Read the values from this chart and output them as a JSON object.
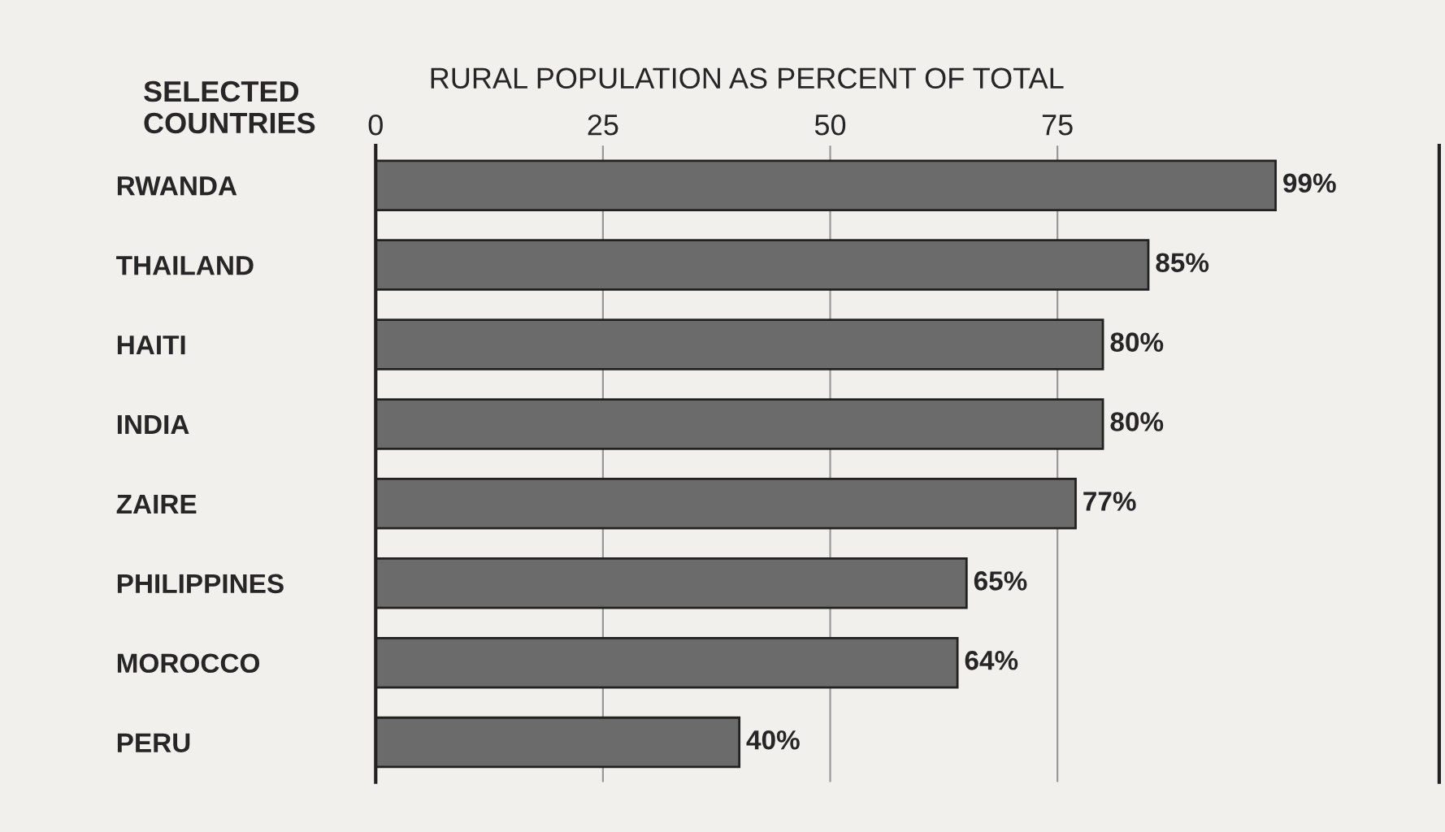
{
  "chart_data": {
    "type": "bar",
    "orientation": "horizontal",
    "xlabel": "RURAL POPULATION AS PERCENT OF TOTAL",
    "ylabel": "SELECTED\nCOUNTRIES",
    "categories": [
      "RWANDA",
      "THAILAND",
      "HAITI",
      "INDIA",
      "ZAIRE",
      "PHILIPPINES",
      "MOROCCO",
      "PERU"
    ],
    "values": [
      99,
      85,
      80,
      80,
      77,
      65,
      64,
      40
    ],
    "value_labels": [
      "99%",
      "85%",
      "80%",
      "80%",
      "77%",
      "65%",
      "64%",
      "40%"
    ],
    "color": "#6b6b6b",
    "xlim": [
      0,
      117
    ],
    "xticks": [
      0,
      25,
      50,
      75
    ],
    "grid": "x"
  }
}
